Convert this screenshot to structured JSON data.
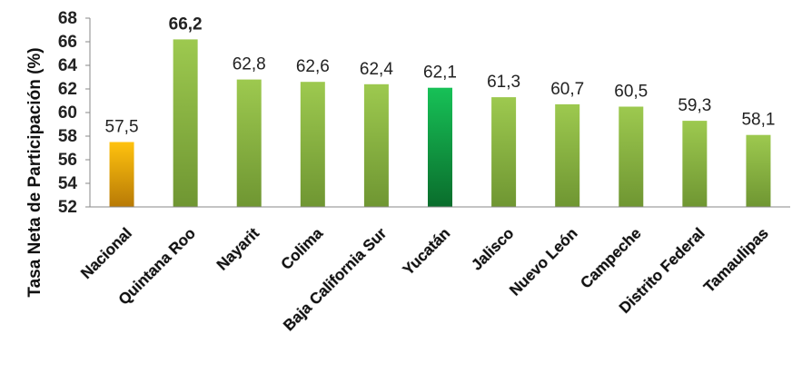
{
  "chart_data": {
    "type": "bar",
    "title": "",
    "xlabel": "",
    "ylabel": "Tasa Neta de Participación (%)",
    "ylim": [
      52,
      68
    ],
    "yticks": [
      52,
      54,
      56,
      58,
      60,
      62,
      64,
      66,
      68
    ],
    "ytick_labels": [
      "52",
      "54",
      "56",
      "58",
      "60",
      "62",
      "64",
      "66",
      "68"
    ],
    "grid": false,
    "legend": "none",
    "categories": [
      "Nacional",
      "Quintana Roo",
      "Nayarit",
      "Colima",
      "Baja California Sur",
      "Yucatán",
      "Jalisco",
      "Nuevo León",
      "Campeche",
      "Distrito Federal",
      "Tamaulipas"
    ],
    "values": [
      57.5,
      66.2,
      62.8,
      62.6,
      62.4,
      62.1,
      61.3,
      60.7,
      60.5,
      59.3,
      58.1
    ],
    "value_labels": [
      "57,5",
      "66,2",
      "62,8",
      "62,6",
      "62,4",
      "62,1",
      "61,3",
      "60,7",
      "60,5",
      "59,3",
      "58,1"
    ],
    "bar_styles": [
      "national",
      "default",
      "default",
      "default",
      "default",
      "highlight",
      "default",
      "default",
      "default",
      "default",
      "default"
    ],
    "colors": {
      "default_top": "#9dc94f",
      "default_bottom": "#6f9632",
      "highlight_top": "#17c157",
      "highlight_bottom": "#0a6d2c",
      "national_top": "#ffc20e",
      "national_bottom": "#b87a06",
      "axis": "#888888"
    }
  }
}
